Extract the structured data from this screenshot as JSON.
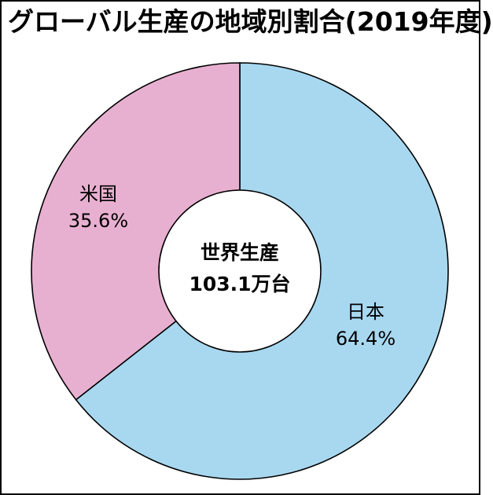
{
  "chart_data": {
    "type": "pie",
    "title": "グローバル生産の地域別割合(2019年度)",
    "categories": [
      "日本",
      "米国"
    ],
    "values": [
      64.4,
      35.6
    ],
    "value_labels": [
      "64.4%",
      "35.6%"
    ],
    "colors": [
      "#a8d8f0",
      "#e8b0d0"
    ],
    "donut": true,
    "center_label": [
      "世界生産",
      "103.1万台"
    ]
  }
}
